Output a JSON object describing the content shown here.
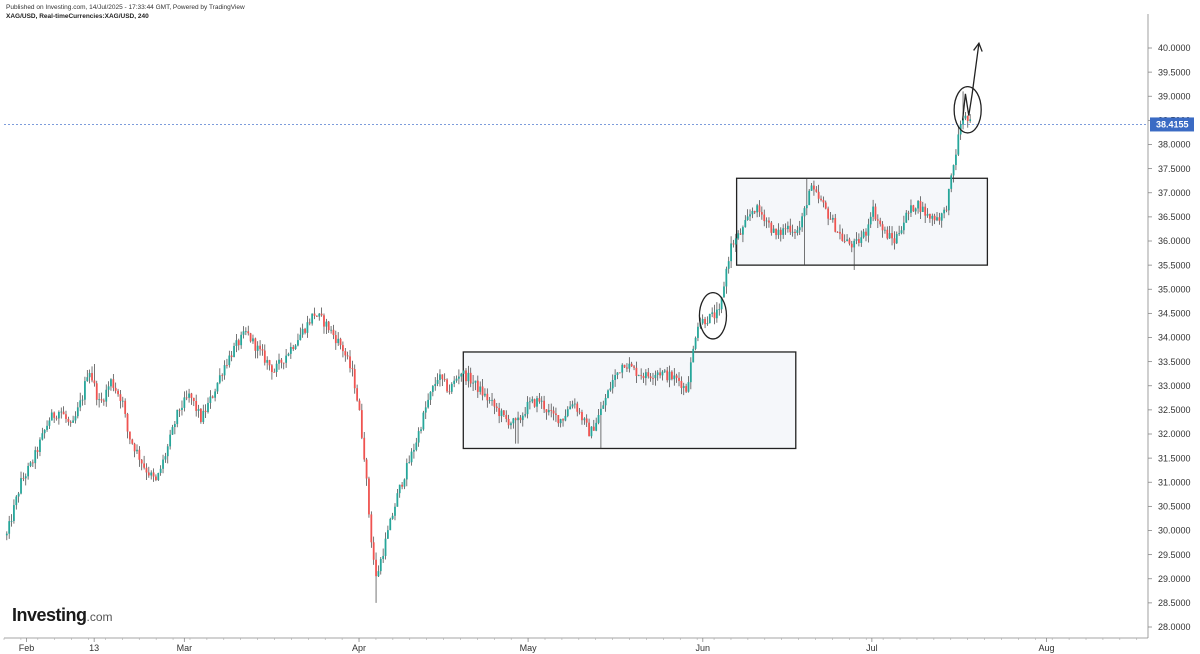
{
  "header": {
    "published_line": "Published on Investing.com, 14/Jul/2025 - 17:33:44 GMT, Powered by TradingView",
    "symbol_line": "XAG/USD, Real-timeCurrencies:XAG/USD, 240"
  },
  "logo": {
    "brand": "Investing",
    "domain": ".com"
  },
  "colors": {
    "up": "#26a69a",
    "down": "#ef5350",
    "wick": "#3a3a3a",
    "price_label_bg": "#3b6bc4",
    "box_fill": "#f5f7fa",
    "price_line": "#6b8fd6"
  },
  "chart_data": {
    "type": "candlestick",
    "title": "",
    "y_axis": {
      "min": 27.9,
      "max": 40.3,
      "ticks": [
        "40.0000",
        "39.5000",
        "39.0000",
        "38.5000",
        "38.0000",
        "37.5000",
        "37.0000",
        "36.5000",
        "36.0000",
        "35.5000",
        "35.0000",
        "34.5000",
        "34.0000",
        "33.5000",
        "33.0000",
        "32.5000",
        "32.0000",
        "31.5000",
        "31.0000",
        "30.5000",
        "30.0000",
        "29.5000",
        "29.0000",
        "28.5000",
        "28.0000"
      ]
    },
    "x_axis": {
      "labels": [
        {
          "label": "Feb",
          "day": 0
        },
        {
          "label": "13",
          "day": 12
        },
        {
          "label": "Mar",
          "day": 28
        },
        {
          "label": "Apr",
          "day": 59
        },
        {
          "label": "May",
          "day": 89
        },
        {
          "label": "Jun",
          "day": 120
        },
        {
          "label": "Jul",
          "day": 150
        },
        {
          "label": "Aug",
          "day": 181
        }
      ],
      "day_range": [
        -4,
        199
      ]
    },
    "current_price": {
      "value": 38.4155,
      "label": "38.4155"
    },
    "price_path": [
      {
        "day": -3.5,
        "price": 29.9
      },
      {
        "day": -1,
        "price": 31.0
      },
      {
        "day": 1,
        "price": 31.4
      },
      {
        "day": 4,
        "price": 32.3
      },
      {
        "day": 6,
        "price": 32.5
      },
      {
        "day": 8,
        "price": 32.1
      },
      {
        "day": 10,
        "price": 32.8
      },
      {
        "day": 11,
        "price": 33.4
      },
      {
        "day": 13,
        "price": 32.6
      },
      {
        "day": 15,
        "price": 33.1
      },
      {
        "day": 17,
        "price": 32.7
      },
      {
        "day": 18,
        "price": 32.0
      },
      {
        "day": 21,
        "price": 31.3
      },
      {
        "day": 23,
        "price": 31.0
      },
      {
        "day": 25,
        "price": 31.7
      },
      {
        "day": 27,
        "price": 32.5
      },
      {
        "day": 29,
        "price": 32.8
      },
      {
        "day": 31,
        "price": 32.3
      },
      {
        "day": 33,
        "price": 32.8
      },
      {
        "day": 35,
        "price": 33.4
      },
      {
        "day": 37,
        "price": 33.8
      },
      {
        "day": 39,
        "price": 34.1
      },
      {
        "day": 42,
        "price": 33.6
      },
      {
        "day": 44,
        "price": 33.3
      },
      {
        "day": 47,
        "price": 33.8
      },
      {
        "day": 50,
        "price": 34.3
      },
      {
        "day": 51,
        "price": 34.5
      },
      {
        "day": 53,
        "price": 34.3
      },
      {
        "day": 56,
        "price": 33.8
      },
      {
        "day": 58,
        "price": 33.2
      },
      {
        "day": 59,
        "price": 32.5
      },
      {
        "day": 60,
        "price": 31.5
      },
      {
        "day": 61,
        "price": 30.0
      },
      {
        "day": 62,
        "price": 29.0
      },
      {
        "day": 64,
        "price": 29.9
      },
      {
        "day": 66,
        "price": 30.8
      },
      {
        "day": 69,
        "price": 31.8
      },
      {
        "day": 71,
        "price": 32.6
      },
      {
        "day": 73,
        "price": 33.2
      },
      {
        "day": 75,
        "price": 32.9
      },
      {
        "day": 77,
        "price": 33.3
      },
      {
        "day": 79,
        "price": 33.1
      },
      {
        "day": 82,
        "price": 32.7
      },
      {
        "day": 85,
        "price": 32.3
      },
      {
        "day": 87,
        "price": 32.2
      },
      {
        "day": 89,
        "price": 32.6
      },
      {
        "day": 91,
        "price": 32.7
      },
      {
        "day": 93,
        "price": 32.4
      },
      {
        "day": 95,
        "price": 32.3
      },
      {
        "day": 97,
        "price": 32.7
      },
      {
        "day": 100,
        "price": 32.0
      },
      {
        "day": 102,
        "price": 32.5
      },
      {
        "day": 104,
        "price": 33.1
      },
      {
        "day": 106,
        "price": 33.5
      },
      {
        "day": 108,
        "price": 33.3
      },
      {
        "day": 110,
        "price": 33.2
      },
      {
        "day": 112,
        "price": 33.3
      },
      {
        "day": 114,
        "price": 33.2
      },
      {
        "day": 116,
        "price": 33.1
      },
      {
        "day": 117,
        "price": 32.9
      },
      {
        "day": 118,
        "price": 33.5
      },
      {
        "day": 119,
        "price": 34.3
      },
      {
        "day": 121,
        "price": 34.4
      },
      {
        "day": 123,
        "price": 34.5
      },
      {
        "day": 124,
        "price": 35.3
      },
      {
        "day": 125,
        "price": 35.9
      },
      {
        "day": 127,
        "price": 36.2
      },
      {
        "day": 129,
        "price": 36.7
      },
      {
        "day": 131,
        "price": 36.5
      },
      {
        "day": 133,
        "price": 36.1
      },
      {
        "day": 135,
        "price": 36.3
      },
      {
        "day": 137,
        "price": 36.2
      },
      {
        "day": 138,
        "price": 36.6
      },
      {
        "day": 139,
        "price": 37.1
      },
      {
        "day": 141,
        "price": 36.8
      },
      {
        "day": 143,
        "price": 36.4
      },
      {
        "day": 145,
        "price": 36.0
      },
      {
        "day": 147,
        "price": 35.9
      },
      {
        "day": 149,
        "price": 36.2
      },
      {
        "day": 150,
        "price": 36.7
      },
      {
        "day": 152,
        "price": 36.2
      },
      {
        "day": 154,
        "price": 36.0
      },
      {
        "day": 156,
        "price": 36.5
      },
      {
        "day": 158,
        "price": 36.8
      },
      {
        "day": 160,
        "price": 36.5
      },
      {
        "day": 162,
        "price": 36.5
      },
      {
        "day": 163,
        "price": 36.6
      },
      {
        "day": 164,
        "price": 37.2
      },
      {
        "day": 165,
        "price": 37.9
      },
      {
        "day": 166,
        "price": 38.6
      },
      {
        "day": 167,
        "price": 38.5
      },
      {
        "day": 167.5,
        "price": 38.42
      }
    ],
    "extremes": [
      {
        "day": 12,
        "price": 33.45
      },
      {
        "day": 51,
        "price": 34.62
      },
      {
        "day": 62,
        "price": 28.5
      },
      {
        "day": 138.3,
        "price": 37.3
      },
      {
        "day": 166.3,
        "price": 39.1
      },
      {
        "day": 147,
        "price": 35.4
      },
      {
        "day": 138,
        "price": 35.5
      },
      {
        "day": 87,
        "price": 31.8
      },
      {
        "day": 102,
        "price": 31.7
      }
    ],
    "annotations": {
      "boxes": [
        {
          "day_start": 77.5,
          "day_end": 136.5,
          "price_top": 33.7,
          "price_bottom": 31.7
        },
        {
          "day_start": 126,
          "day_end": 170.5,
          "price_top": 37.3,
          "price_bottom": 35.5
        }
      ],
      "circles": [
        {
          "day": 121.8,
          "price": 34.45,
          "rx_days": 2.4,
          "ry_price": 0.48
        },
        {
          "day": 167,
          "price": 38.72,
          "rx_days": 2.4,
          "ry_price": 0.48
        }
      ],
      "arrow_path": [
        {
          "day": 166.1,
          "price": 38.5
        },
        {
          "day": 166.6,
          "price": 39.05
        },
        {
          "day": 167.2,
          "price": 38.6
        },
        {
          "day": 167.8,
          "price": 39.05
        },
        {
          "day": 169.0,
          "price": 40.1
        }
      ]
    }
  }
}
